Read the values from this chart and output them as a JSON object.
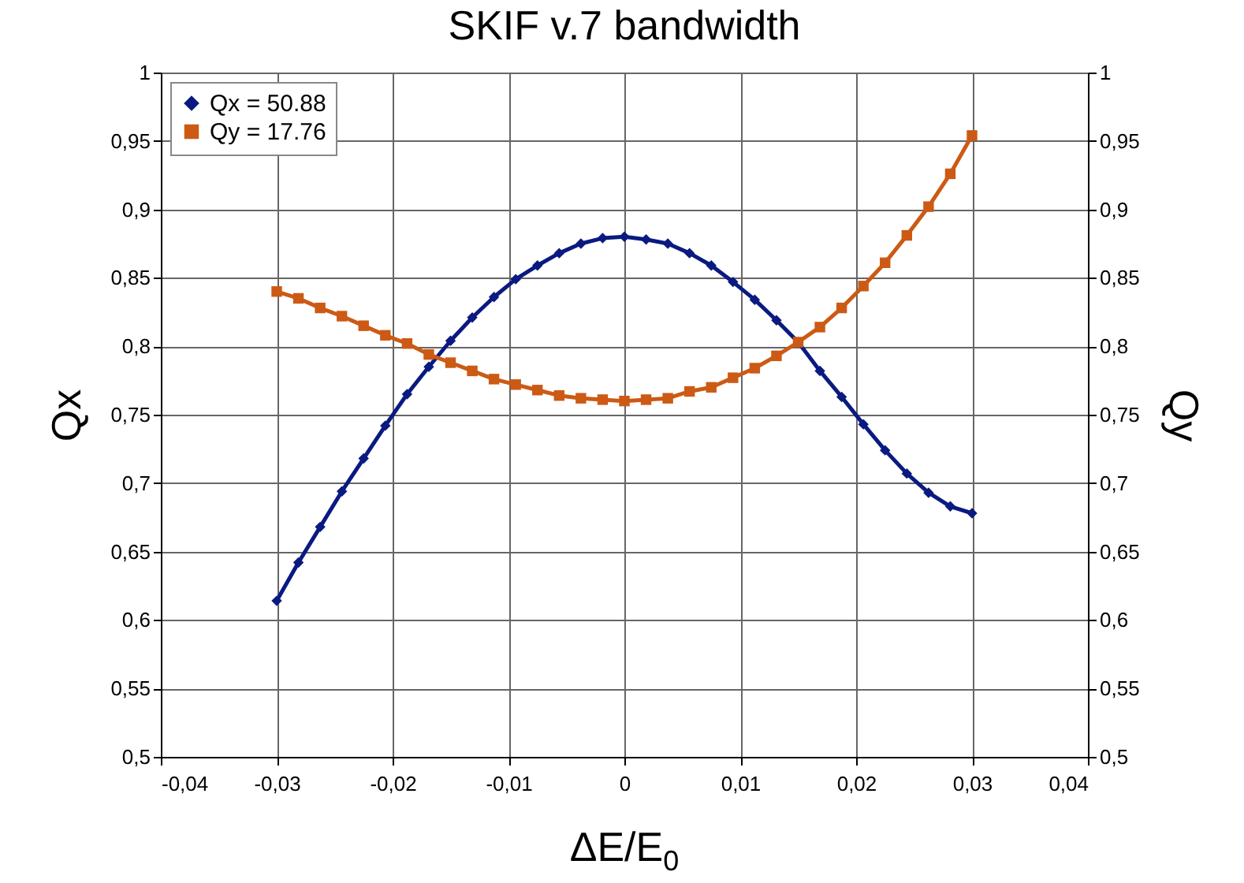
{
  "chart_data": {
    "type": "line",
    "title": "SKIF v.7 bandwidth",
    "xlabel": "ΔE/E$_{0}$",
    "ylabel": "Qx",
    "y2label": "Qy",
    "x": [
      -0.03,
      -0.028125,
      -0.02625,
      -0.024375,
      -0.0225,
      -0.020625,
      -0.01875,
      -0.016875,
      -0.015,
      -0.013125,
      -0.01125,
      -0.009375,
      -0.0075,
      -0.005625,
      -0.00375,
      -0.001875,
      0,
      0.001875,
      0.00375,
      0.005625,
      0.0075,
      0.009375,
      0.01125,
      0.013125,
      0.015,
      0.016875,
      0.01875,
      0.020625,
      0.0225,
      0.024375,
      0.02625,
      0.028125,
      0.03
    ],
    "series": [
      {
        "name": "Qx = 50.88",
        "color": "#0a1a80",
        "marker": "diamond",
        "values": [
          0.614,
          0.642,
          0.668,
          0.694,
          0.718,
          0.742,
          0.765,
          0.785,
          0.804,
          0.821,
          0.836,
          0.849,
          0.859,
          0.868,
          0.875,
          0.879,
          0.88,
          0.878,
          0.875,
          0.868,
          0.859,
          0.847,
          0.834,
          0.819,
          0.803,
          0.782,
          0.763,
          0.743,
          0.724,
          0.707,
          0.693,
          0.683,
          0.678
        ]
      },
      {
        "name": "Qy = 17.76",
        "color": "#cc5a14",
        "marker": "square",
        "axis": "y2",
        "values": [
          0.84,
          0.835,
          0.828,
          0.822,
          0.815,
          0.808,
          0.802,
          0.794,
          0.788,
          0.782,
          0.776,
          0.772,
          0.768,
          0.764,
          0.762,
          0.761,
          0.76,
          0.761,
          0.762,
          0.767,
          0.77,
          0.777,
          0.784,
          0.793,
          0.803,
          0.814,
          0.828,
          0.844,
          0.861,
          0.881,
          0.902,
          0.926,
          0.954
        ]
      }
    ],
    "xlim": [
      -0.04,
      0.04
    ],
    "xticks": [
      {
        "value": -0.04,
        "label": "-0,04"
      },
      {
        "value": -0.03,
        "label": "-0,03"
      },
      {
        "value": -0.02,
        "label": "-0,02"
      },
      {
        "value": -0.01,
        "label": "-0,01"
      },
      {
        "value": 0,
        "label": "0"
      },
      {
        "value": 0.01,
        "label": "0,01"
      },
      {
        "value": 0.02,
        "label": "0,02"
      },
      {
        "value": 0.03,
        "label": "0,03"
      },
      {
        "value": 0.04,
        "label": "0,04"
      }
    ],
    "ylim": [
      0.5,
      1
    ],
    "yticks": [
      {
        "value": 0.5,
        "label": "0,5"
      },
      {
        "value": 0.55,
        "label": "0,55"
      },
      {
        "value": 0.6,
        "label": "0,6"
      },
      {
        "value": 0.65,
        "label": "0,65"
      },
      {
        "value": 0.7,
        "label": "0,7"
      },
      {
        "value": 0.75,
        "label": "0,75"
      },
      {
        "value": 0.8,
        "label": "0,8"
      },
      {
        "value": 0.85,
        "label": "0,85"
      },
      {
        "value": 0.9,
        "label": "0,9"
      },
      {
        "value": 0.95,
        "label": "0,95"
      },
      {
        "value": 1,
        "label": "1"
      }
    ],
    "y2lim": [
      0.5,
      1
    ],
    "y2ticks": [
      {
        "value": 0.5,
        "label": "0,5"
      },
      {
        "value": 0.55,
        "label": "0,55"
      },
      {
        "value": 0.6,
        "label": "0,6"
      },
      {
        "value": 0.65,
        "label": "0,65"
      },
      {
        "value": 0.7,
        "label": "0,7"
      },
      {
        "value": 0.75,
        "label": "0,75"
      },
      {
        "value": 0.8,
        "label": "0,8"
      },
      {
        "value": 0.85,
        "label": "0,85"
      },
      {
        "value": 0.9,
        "label": "0,9"
      },
      {
        "value": 0.95,
        "label": "0,95"
      },
      {
        "value": 1,
        "label": "1"
      }
    ],
    "grid": true,
    "legend": "top left",
    "line_style": "solid"
  }
}
